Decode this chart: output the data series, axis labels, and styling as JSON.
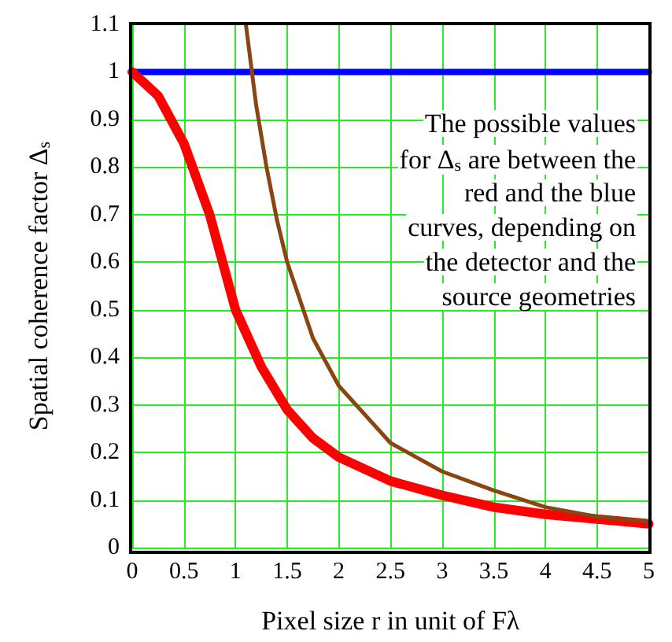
{
  "chart_data": {
    "type": "line",
    "xlabel": "Pixel size r in unit of Fλ",
    "ylabel": "Spatial coherence factor Δ$_{s}$",
    "annotations": [
      "The possible values\nfor Δ$_{s}$ are between the\nred and the blue\ncurves, depending on\nthe detector and the\nsource geometries"
    ],
    "series": [
      {
        "color": "#0000ff",
        "x": [
          0,
          5
        ],
        "values": [
          1,
          1
        ]
      },
      {
        "color": "#ff0000",
        "x": [
          0,
          0.25,
          0.5,
          0.75,
          1,
          1.25,
          1.5,
          1.75,
          2,
          2.5,
          3,
          3.5,
          4,
          4.5,
          5
        ],
        "values": [
          1,
          0.95,
          0.85,
          0.7,
          0.5,
          0.38,
          0.29,
          0.23,
          0.19,
          0.14,
          0.11,
          0.085,
          0.07,
          0.06,
          0.05
        ]
      },
      {
        "color": "#8b4513",
        "x": [
          1.1,
          1.2,
          1.3,
          1.4,
          1.5,
          1.75,
          2,
          2.5,
          3,
          3.5,
          4,
          4.5,
          5
        ],
        "values": [
          1.1,
          0.93,
          0.8,
          0.69,
          0.6,
          0.44,
          0.34,
          0.22,
          0.16,
          0.12,
          0.085,
          0.065,
          0.055
        ]
      }
    ],
    "xlim": [
      0,
      5
    ],
    "xticks": [
      0,
      0.5,
      1,
      1.5,
      2,
      2.5,
      3,
      3.5,
      4,
      4.5,
      5
    ],
    "ylim": [
      0,
      1.1
    ],
    "yticks": [
      0,
      0.1,
      0.2,
      0.3,
      0.4,
      0.5,
      0.6,
      0.7,
      0.8,
      0.9,
      1,
      1.1
    ],
    "grid": true,
    "marker": "none",
    "line_style": "solid"
  }
}
